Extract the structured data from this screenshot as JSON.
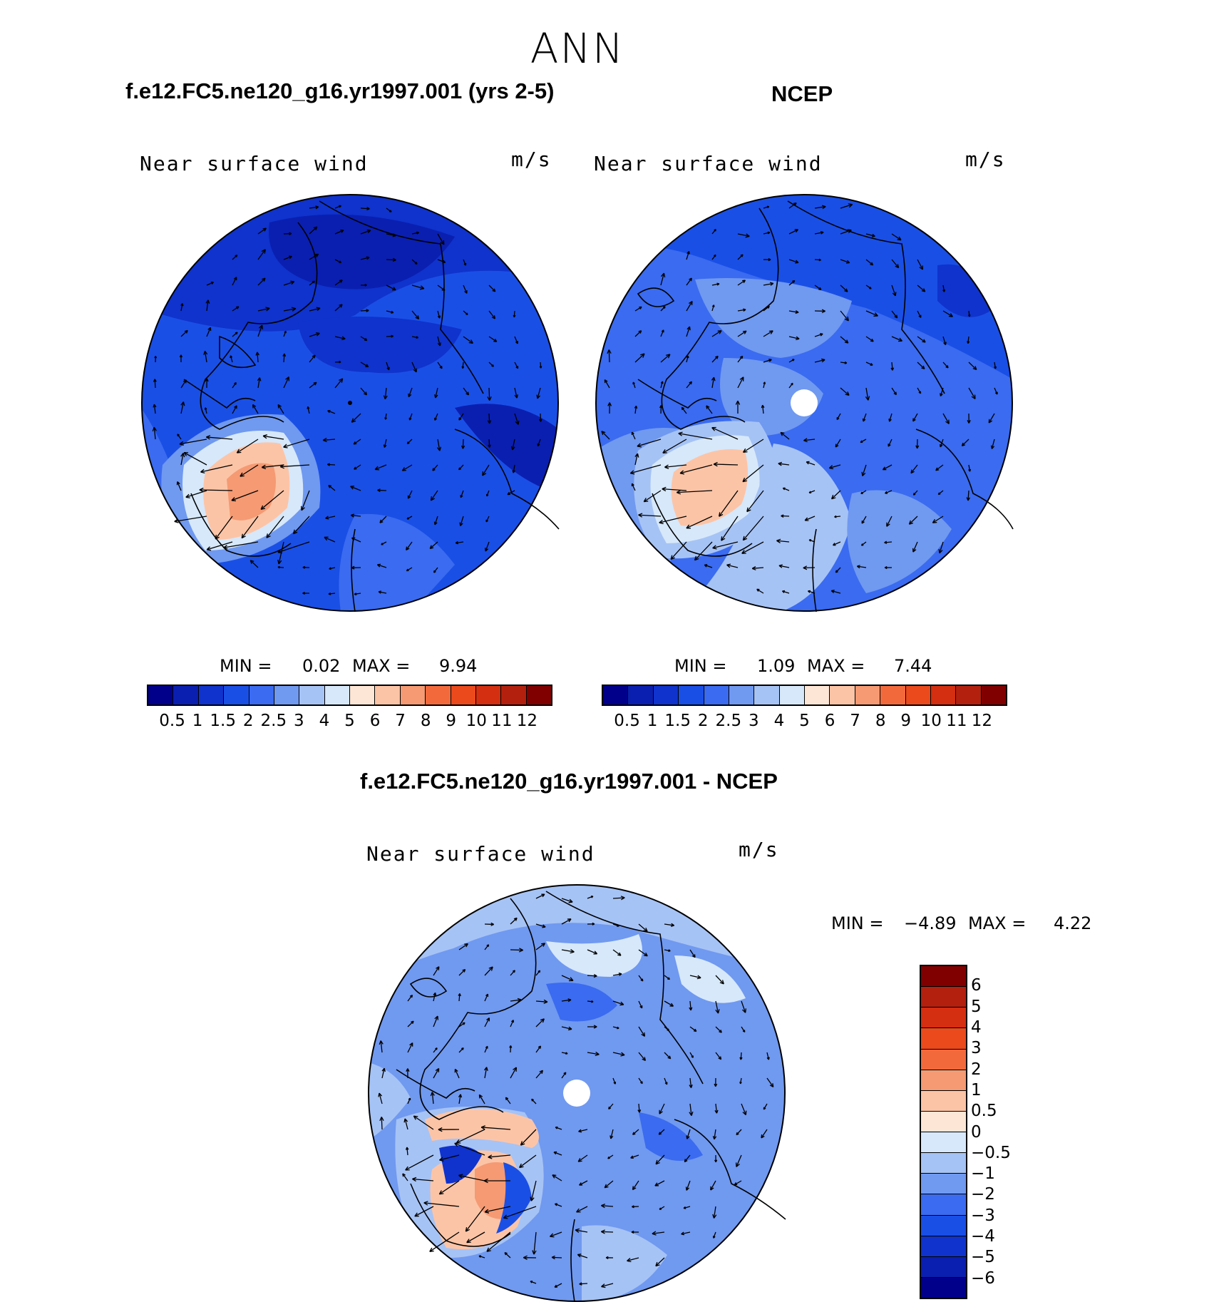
{
  "title": "ANN",
  "panels": [
    {
      "title": "f.e12.FC5.ne120_g16.yr1997.001 (yrs 2-5)",
      "variable": "Near surface wind",
      "units": "m/s",
      "min_label": "MIN =",
      "min_value": "0.02",
      "max_label": "MAX =",
      "max_value": "9.94"
    },
    {
      "title": "NCEP",
      "variable": "Near surface wind",
      "units": "m/s",
      "min_label": "MIN =",
      "min_value": "1.09",
      "max_label": "MAX =",
      "max_value": "7.44"
    },
    {
      "title": "f.e12.FC5.ne120_g16.yr1997.001 - NCEP",
      "variable": "Near surface wind",
      "units": "m/s",
      "min_label": "MIN =",
      "min_value": "−4.89",
      "max_label": "MAX =",
      "max_value": "4.22"
    }
  ],
  "colorbar_wind": {
    "colors": [
      "#00008b",
      "#0a1fb0",
      "#0f33cc",
      "#1a4fe6",
      "#3a6bf0",
      "#7099f0",
      "#a6c3f5",
      "#d6e8fa",
      "#fde6d6",
      "#fcc4a6",
      "#f59a73",
      "#f26a3c",
      "#ea4a1c",
      "#d42f10",
      "#b3200e",
      "#800000"
    ],
    "ticks": [
      "0.5",
      "1",
      "1.5",
      "2",
      "2.5",
      "3",
      "4",
      "5",
      "6",
      "7",
      "8",
      "9",
      "10",
      "11",
      "12"
    ]
  },
  "colorbar_diff": {
    "colors": [
      "#800000",
      "#b3200e",
      "#d42f10",
      "#ea4a1c",
      "#f26a3c",
      "#f59a73",
      "#fcc4a6",
      "#fde6d6",
      "#d6e8fa",
      "#a6c3f5",
      "#7099f0",
      "#3a6bf0",
      "#1a4fe6",
      "#0f33cc",
      "#0a1fb0",
      "#00008b"
    ],
    "ticks": [
      "6",
      "5",
      "4",
      "3",
      "2",
      "1",
      "0.5",
      "0",
      "−0.5",
      "−1",
      "−2",
      "−3",
      "−4",
      "−5",
      "−6"
    ]
  }
}
